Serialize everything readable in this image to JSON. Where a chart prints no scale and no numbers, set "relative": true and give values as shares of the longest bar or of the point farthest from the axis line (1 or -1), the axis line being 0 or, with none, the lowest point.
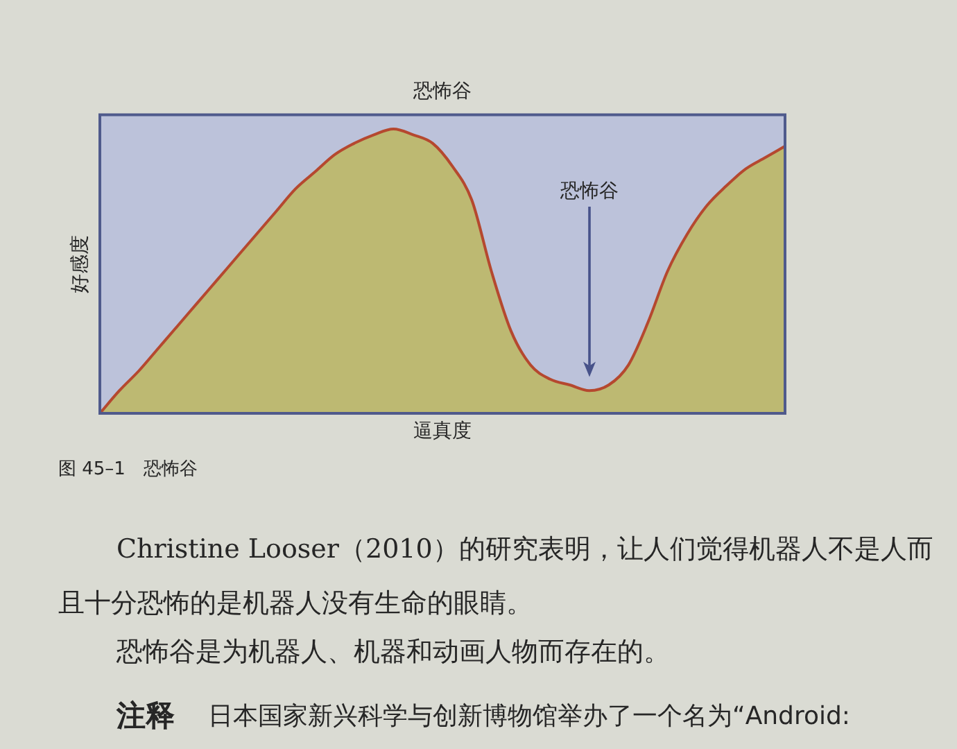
{
  "chart_data": {
    "type": "area",
    "title": "恐怖谷",
    "xlabel": "逼真度",
    "ylabel": "好感度",
    "relative": true,
    "categories": [
      null,
      null,
      null,
      null,
      null,
      null,
      null,
      null,
      null,
      null,
      null,
      null,
      null,
      null,
      null,
      null,
      null,
      null,
      null,
      null,
      null,
      null,
      null,
      null,
      null,
      null,
      null,
      null,
      null,
      null,
      null,
      null,
      null,
      null,
      null,
      null
    ],
    "values": [
      0,
      0.08,
      0.15,
      0.23,
      0.31,
      0.39,
      0.47,
      0.55,
      0.63,
      0.71,
      0.79,
      0.85,
      0.91,
      0.95,
      0.98,
      1,
      0.98,
      0.95,
      0.87,
      0.75,
      0.5,
      0.29,
      0.17,
      0.12,
      0.1,
      0.08,
      0.1,
      0.17,
      0.32,
      0.5,
      0.63,
      0.73,
      0.8,
      0.86,
      0.9,
      0.94
    ],
    "color": "#bdb972",
    "annotations": [
      "恐怖谷",
      "图 45–1　恐怖谷",
      "Christine Looser（2010）的研究表明，让人们觉得机器人不是人而",
      "且十分恐怖的是机器人没有生命的眼睛。",
      "恐怖谷是为机器人、机器和动画人物而存在的。",
      "注释",
      "日本国家新兴科学与创新博物馆举办了一个名为“Android:"
    ]
  }
}
